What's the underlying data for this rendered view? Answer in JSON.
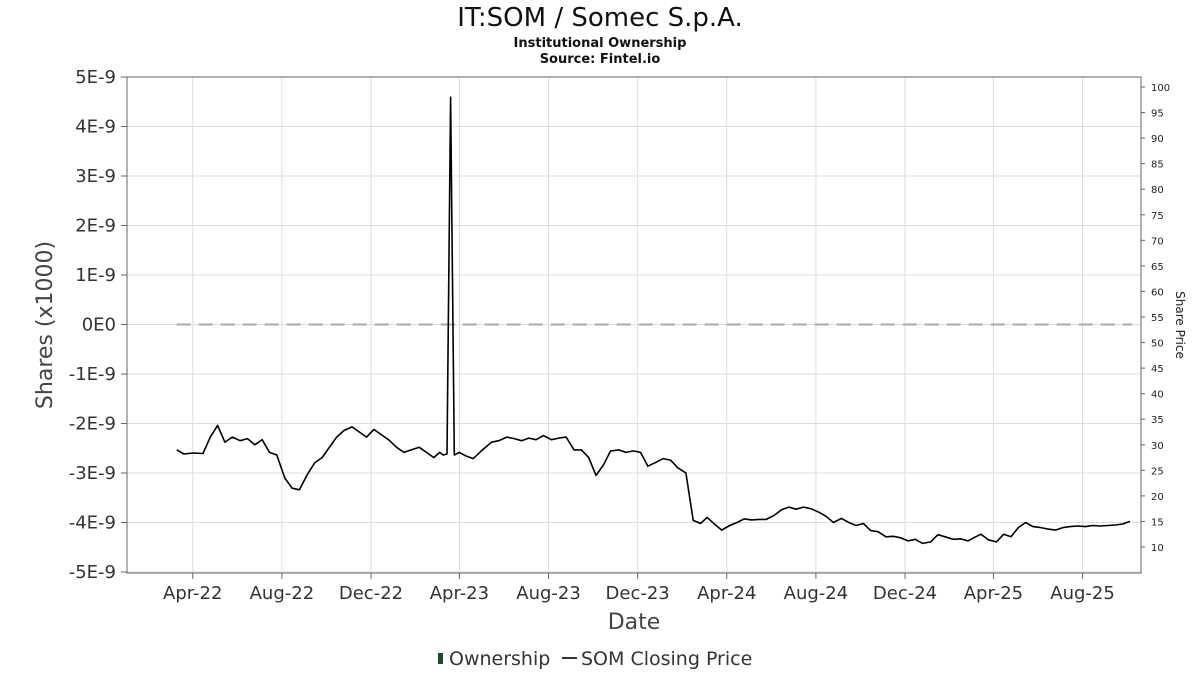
{
  "chart_data": {
    "type": "line",
    "title": "IT:SOM / Somec S.p.A.",
    "subtitle_1": "Institutional Ownership",
    "subtitle_2": "Source: Fintel.io",
    "xlabel": "Date",
    "ylabel": "Shares (x1000)",
    "y2label": "Share Price",
    "x_ticks": [
      "Apr-22",
      "Aug-22",
      "Dec-22",
      "Apr-23",
      "Aug-23",
      "Dec-23",
      "Apr-24",
      "Aug-24",
      "Dec-24",
      "Apr-25",
      "Aug-25"
    ],
    "x_range": [
      "2022-01-01",
      "2025-10-20"
    ],
    "ylim": [
      -5e-09,
      5e-09
    ],
    "y_ticks": [
      "5E-9",
      "4E-9",
      "3E-9",
      "2E-9",
      "1E-9",
      "0E0",
      "-1E-9",
      "-2E-9",
      "-3E-9",
      "-4E-9",
      "-5E-9"
    ],
    "y2lim": [
      5,
      102
    ],
    "y2_ticks": [
      100,
      95,
      90,
      85,
      80,
      75,
      70,
      65,
      60,
      55,
      50,
      45,
      40,
      35,
      30,
      25,
      20,
      15,
      10
    ],
    "grid": true,
    "legend_position": "bottom",
    "series": [
      {
        "name": "Ownership",
        "axis": "left",
        "color": "#1e4d2b",
        "style": "dashed",
        "dash_color": "#aaaaaa",
        "x": [
          "2022-03-10",
          "2025-10-08"
        ],
        "values": [
          0,
          0
        ]
      },
      {
        "name": "SOM Closing Price",
        "axis": "right",
        "color": "#000000",
        "x": [
          "2022-03-10",
          "2022-03-20",
          "2022-04-01",
          "2022-04-15",
          "2022-04-25",
          "2022-05-05",
          "2022-05-15",
          "2022-05-25",
          "2022-06-05",
          "2022-06-15",
          "2022-06-25",
          "2022-07-05",
          "2022-07-15",
          "2022-07-25",
          "2022-08-05",
          "2022-08-15",
          "2022-08-25",
          "2022-09-05",
          "2022-09-15",
          "2022-09-25",
          "2022-10-05",
          "2022-10-15",
          "2022-10-25",
          "2022-11-05",
          "2022-11-15",
          "2022-11-25",
          "2022-12-05",
          "2022-12-15",
          "2022-12-25",
          "2023-01-05",
          "2023-01-15",
          "2023-01-25",
          "2023-02-05",
          "2023-02-15",
          "2023-02-25",
          "2023-03-05",
          "2023-03-10",
          "2023-03-15",
          "2023-03-20",
          "2023-03-25",
          "2023-04-01",
          "2023-04-10",
          "2023-04-20",
          "2023-05-01",
          "2023-05-15",
          "2023-05-25",
          "2023-06-05",
          "2023-06-15",
          "2023-06-25",
          "2023-07-05",
          "2023-07-15",
          "2023-07-25",
          "2023-08-05",
          "2023-08-15",
          "2023-08-25",
          "2023-09-05",
          "2023-09-15",
          "2023-09-25",
          "2023-10-05",
          "2023-10-15",
          "2023-10-25",
          "2023-11-05",
          "2023-11-15",
          "2023-11-25",
          "2023-12-05",
          "2023-12-15",
          "2023-12-25",
          "2024-01-05",
          "2024-01-15",
          "2024-01-25",
          "2024-02-05",
          "2024-02-15",
          "2024-02-25",
          "2024-03-05",
          "2024-03-15",
          "2024-03-25",
          "2024-04-05",
          "2024-04-15",
          "2024-04-25",
          "2024-05-05",
          "2024-05-15",
          "2024-05-25",
          "2024-06-05",
          "2024-06-15",
          "2024-06-25",
          "2024-07-05",
          "2024-07-15",
          "2024-07-25",
          "2024-08-05",
          "2024-08-15",
          "2024-08-25",
          "2024-09-05",
          "2024-09-15",
          "2024-09-25",
          "2024-10-05",
          "2024-10-15",
          "2024-10-25",
          "2024-11-05",
          "2024-11-15",
          "2024-11-25",
          "2024-12-05",
          "2024-12-15",
          "2024-12-25",
          "2025-01-05",
          "2025-01-15",
          "2025-01-25",
          "2025-02-05",
          "2025-02-15",
          "2025-02-25",
          "2025-03-05",
          "2025-03-15",
          "2025-03-25",
          "2025-04-05",
          "2025-04-15",
          "2025-04-25",
          "2025-05-05",
          "2025-05-15",
          "2025-05-25",
          "2025-06-05",
          "2025-06-15",
          "2025-06-25",
          "2025-07-05",
          "2025-07-15",
          "2025-07-25",
          "2025-08-05",
          "2025-08-15",
          "2025-08-25",
          "2025-09-05",
          "2025-09-15",
          "2025-09-25",
          "2025-10-05"
        ],
        "values": [
          29.0,
          28.2,
          28.4,
          28.3,
          31.5,
          33.8,
          30.5,
          31.5,
          30.8,
          31.2,
          30.0,
          31.0,
          28.5,
          28.0,
          23.5,
          21.5,
          21.2,
          24.2,
          26.5,
          27.5,
          29.5,
          31.5,
          32.8,
          33.5,
          32.5,
          31.5,
          33.0,
          32.0,
          31.0,
          29.5,
          28.5,
          29.0,
          29.5,
          28.5,
          27.5,
          28.5,
          28.0,
          28.2,
          98.0,
          28.0,
          28.5,
          27.8,
          27.3,
          28.8,
          30.5,
          30.8,
          31.5,
          31.2,
          30.8,
          31.3,
          31.0,
          31.8,
          31.0,
          31.3,
          31.5,
          29.0,
          29.0,
          27.5,
          24.0,
          26.0,
          28.8,
          29.0,
          28.5,
          28.8,
          28.5,
          25.8,
          26.5,
          27.3,
          27.0,
          25.5,
          24.5,
          15.2,
          14.6,
          15.8,
          14.5,
          13.3,
          14.2,
          14.8,
          15.5,
          15.3,
          15.4,
          15.4,
          16.2,
          17.3,
          17.8,
          17.4,
          17.8,
          17.5,
          16.8,
          16.0,
          14.8,
          15.6,
          14.8,
          14.2,
          14.6,
          13.2,
          13.0,
          12.0,
          12.1,
          11.8,
          11.2,
          11.5,
          10.7,
          11.0,
          12.4,
          12.0,
          11.5,
          11.6,
          11.2,
          11.8,
          12.5,
          11.4,
          11.0,
          12.5,
          12.0,
          13.8,
          14.8,
          14.0,
          13.8,
          13.5,
          13.3,
          13.8,
          14.0,
          14.1,
          14.0,
          14.2,
          14.1,
          14.2,
          14.3,
          14.5,
          15.0
        ]
      }
    ]
  },
  "legend": {
    "ownership_label": "Ownership",
    "price_label": "SOM Closing Price"
  }
}
